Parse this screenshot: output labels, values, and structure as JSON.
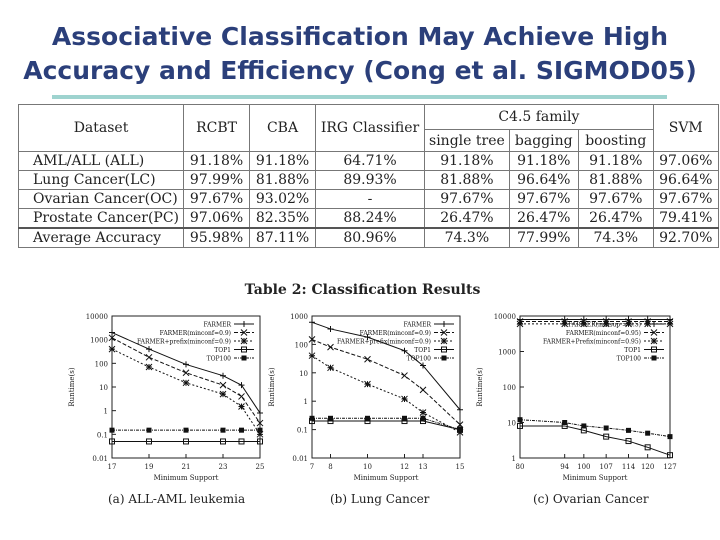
{
  "title": {
    "line1": "Associative Classification May Achieve High",
    "line2": "Accuracy and Efficiency (Cong et al. SIGMOD05)"
  },
  "accent_colors": {
    "title": "#2b3f7a",
    "rule": "#9ed3cf"
  },
  "table": {
    "headers": {
      "dataset": "Dataset",
      "rcbt": "RCBT",
      "cba": "CBA",
      "irg": "IRG Classifier",
      "c45": "C4.5 family",
      "svm": "SVM",
      "single_tree": "single tree",
      "bagging": "bagging",
      "boosting": "boosting"
    },
    "rows": [
      [
        "AML/ALL (ALL)",
        "91.18%",
        "91.18%",
        "64.71%",
        "91.18%",
        "91.18%",
        "91.18%",
        "97.06%"
      ],
      [
        "Lung Cancer(LC)",
        "97.99%",
        "81.88%",
        "89.93%",
        "81.88%",
        "96.64%",
        "81.88%",
        "96.64%"
      ],
      [
        "Ovarian Cancer(OC)",
        "97.67%",
        "93.02%",
        "-",
        "97.67%",
        "97.67%",
        "97.67%",
        "97.67%"
      ],
      [
        "Prostate Cancer(PC)",
        "97.06%",
        "82.35%",
        "88.24%",
        "26.47%",
        "26.47%",
        "26.47%",
        "79.41%"
      ],
      [
        "Average Accuracy",
        "95.98%",
        "87.11%",
        "80.96%",
        "74.3%",
        "77.99%",
        "74.3%",
        "92.70%"
      ]
    ]
  },
  "table_caption": "Table 2:  Classification Results",
  "chart_data": [
    {
      "type": "line",
      "caption": "(a) ALL-AML leukemia",
      "xlabel": "Minimum Support",
      "ylabel": "Runtime(s)",
      "log_y": true,
      "ylim": [
        0.01,
        10000
      ],
      "xticks": [
        "17",
        "19",
        "21",
        "23",
        "25"
      ],
      "yticks": [
        "0.01",
        "0.1",
        "1",
        "10",
        "100",
        "1000",
        "10000"
      ],
      "x": [
        17,
        19,
        21,
        23,
        24,
        25
      ],
      "series": [
        {
          "name": "FARMER",
          "marker": "plus",
          "values": [
            2000,
            400,
            90,
            30,
            12,
            0.8
          ]
        },
        {
          "name": "FARMER(minconf=0.9)",
          "marker": "x",
          "values": [
            1200,
            180,
            40,
            12,
            4,
            0.3
          ]
        },
        {
          "name": "FARMER+prefix(minconf=0.9)",
          "marker": "star",
          "values": [
            400,
            70,
            15,
            5,
            1.5,
            0.1
          ]
        },
        {
          "name": "TOP1",
          "marker": "square",
          "values": [
            0.05,
            0.05,
            0.05,
            0.05,
            0.05,
            0.05
          ]
        },
        {
          "name": "TOP100",
          "marker": "filled-square",
          "values": [
            0.15,
            0.15,
            0.15,
            0.15,
            0.15,
            0.15
          ]
        }
      ]
    },
    {
      "type": "line",
      "caption": "(b) Lung Cancer",
      "xlabel": "Minimum Support",
      "ylabel": "Runtime(s)",
      "log_y": true,
      "ylim": [
        0.01,
        1000
      ],
      "xticks": [
        "7",
        "8",
        "10",
        "12",
        "13",
        "15"
      ],
      "yticks": [
        "0.01",
        "0.1",
        "1",
        "10",
        "100",
        "1000"
      ],
      "x": [
        7,
        8,
        10,
        12,
        13,
        15
      ],
      "series": [
        {
          "name": "FARMER",
          "marker": "plus",
          "values": [
            600,
            350,
            180,
            60,
            18,
            0.5
          ]
        },
        {
          "name": "FARMER(minconf=0.9)",
          "marker": "x",
          "values": [
            150,
            80,
            30,
            8,
            2.5,
            0.15
          ]
        },
        {
          "name": "FARMER+prefix(minconf=0.9)",
          "marker": "star",
          "values": [
            40,
            15,
            4,
            1.2,
            0.4,
            0.08
          ]
        },
        {
          "name": "TOP1",
          "marker": "square",
          "values": [
            0.2,
            0.2,
            0.2,
            0.2,
            0.2,
            0.1
          ]
        },
        {
          "name": "TOP100",
          "marker": "filled-square",
          "values": [
            0.25,
            0.25,
            0.25,
            0.25,
            0.25,
            0.1
          ]
        }
      ]
    },
    {
      "type": "line",
      "caption": "(c) Ovarian Cancer",
      "xlabel": "Minimum Support",
      "ylabel": "Runtime(s)",
      "log_y": true,
      "ylim": [
        1,
        10000
      ],
      "xticks": [
        "80",
        "94",
        "100",
        "107",
        "114",
        "120",
        "127"
      ],
      "yticks": [
        "1",
        "10",
        "100",
        "1000",
        "10000"
      ],
      "x": [
        80,
        94,
        100,
        107,
        114,
        120,
        127
      ],
      "series": [
        {
          "name": "FARMER(minsup = 0.5)",
          "marker": "plus",
          "values": [
            8000,
            8000,
            8000,
            8000,
            8000,
            8000,
            8000
          ]
        },
        {
          "name": "FARMER(minconf=0.95)",
          "marker": "x",
          "values": [
            7000,
            7000,
            7000,
            7000,
            7000,
            7000,
            7000
          ]
        },
        {
          "name": "FARMER+Prefix(minconf=0.95)",
          "marker": "star",
          "values": [
            6000,
            6000,
            6000,
            6000,
            6000,
            6000,
            6000
          ]
        },
        {
          "name": "TOP1",
          "marker": "square",
          "values": [
            8,
            8,
            6,
            4,
            3,
            2,
            1.2
          ]
        },
        {
          "name": "TOP100",
          "marker": "filled-square",
          "values": [
            12,
            10,
            8,
            7,
            6,
            5,
            4
          ]
        }
      ]
    }
  ]
}
